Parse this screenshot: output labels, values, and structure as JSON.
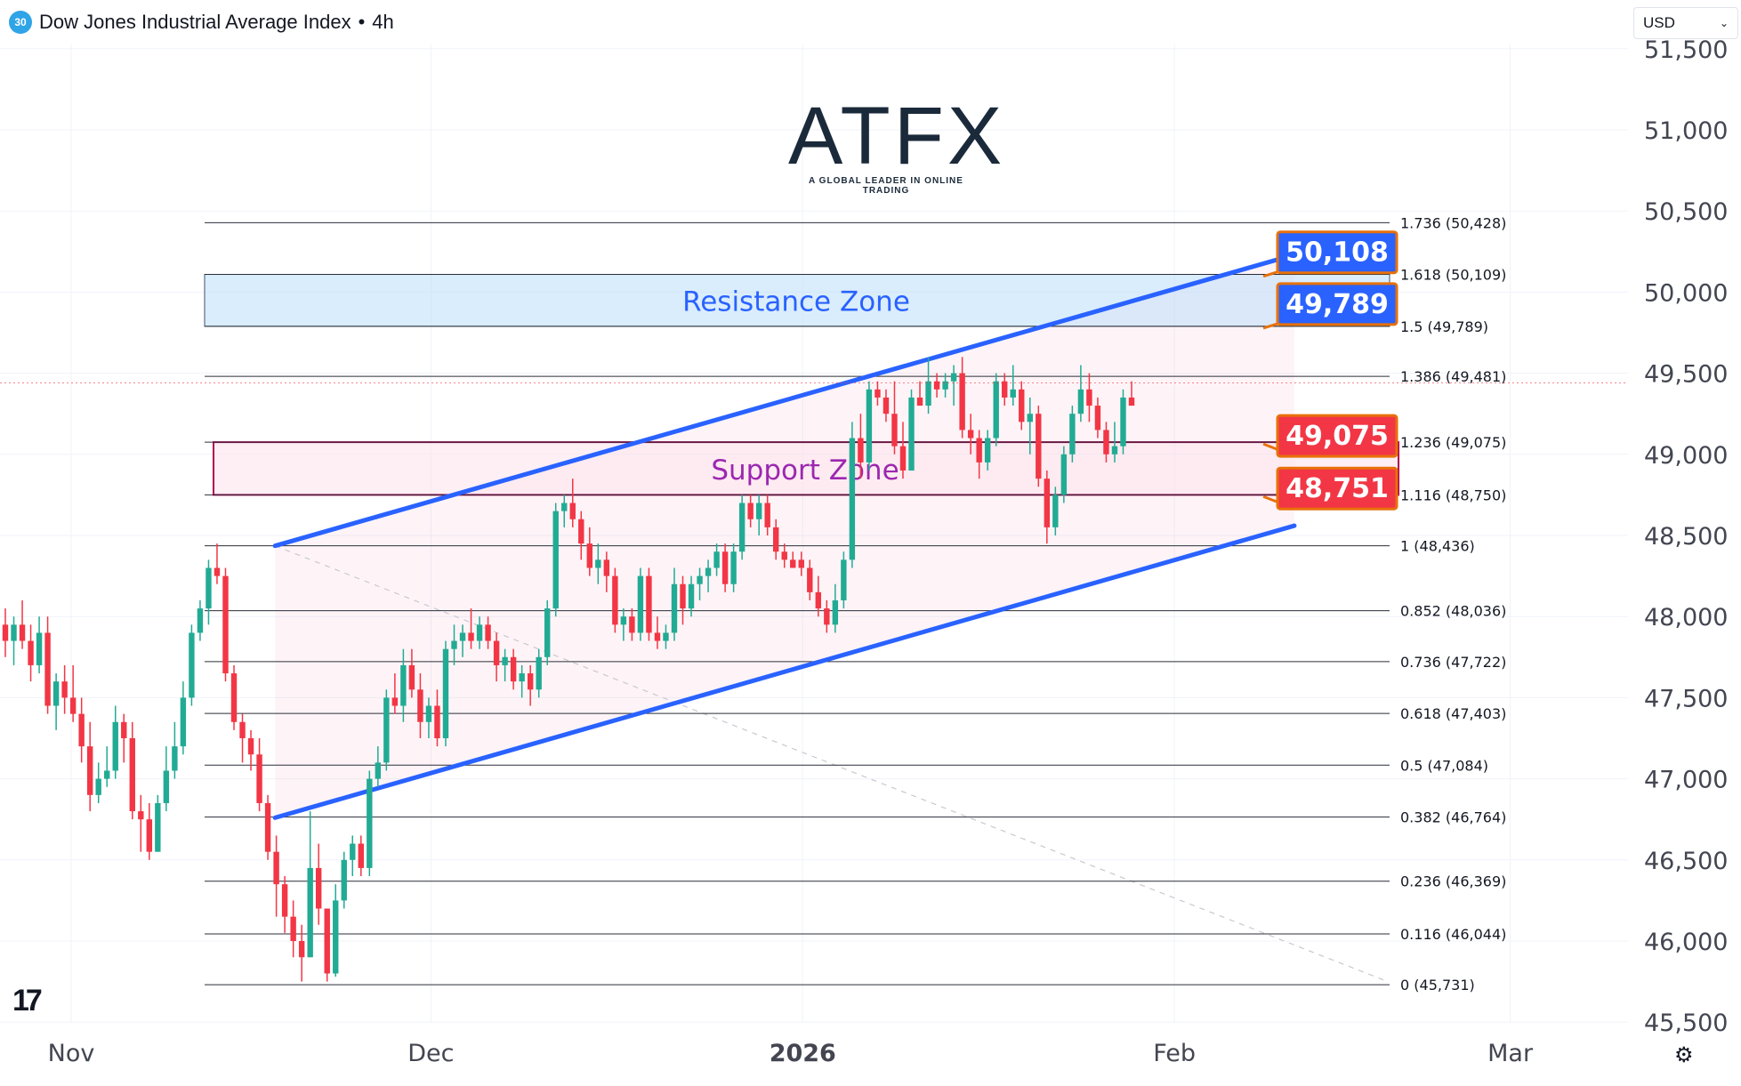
{
  "header": {
    "badge": "30",
    "title": "Dow Jones Industrial Average Index",
    "separator": "•",
    "interval": "4h"
  },
  "currency": {
    "value": "USD"
  },
  "logo": {
    "wordmark": "ATFX",
    "tagline": "A GLOBAL LEADER IN ONLINE TRADING"
  },
  "tv_logo": "17",
  "colors": {
    "bull": "#22ab94",
    "bear": "#f23645",
    "channel": "#2962ff",
    "resistance": "#2962ff",
    "support": "#b0004f",
    "zone_label_res": "#2962ff",
    "zone_label_sup": "#9c27b0"
  },
  "chart_data": {
    "type": "candlestick",
    "y_range": [
      45500,
      51500
    ],
    "y_ticks": [
      {
        "value": 51500,
        "label": "51,500"
      },
      {
        "value": 51000,
        "label": "51,000"
      },
      {
        "value": 50500,
        "label": "50,500"
      },
      {
        "value": 50000,
        "label": "50,000"
      },
      {
        "value": 49500,
        "label": "49,500"
      },
      {
        "value": 49000,
        "label": "49,000"
      },
      {
        "value": 48500,
        "label": "48,500"
      },
      {
        "value": 48000,
        "label": "48,000"
      },
      {
        "value": 47500,
        "label": "47,500"
      },
      {
        "value": 47000,
        "label": "47,000"
      },
      {
        "value": 46500,
        "label": "46,500"
      },
      {
        "value": 46000,
        "label": "46,000"
      },
      {
        "value": 45500,
        "label": "45,500"
      }
    ],
    "x_ticks": [
      {
        "day": 0,
        "label": "Nov",
        "bold": false
      },
      {
        "day": 30,
        "label": "Dec",
        "bold": false
      },
      {
        "day": 61,
        "label": "2026",
        "bold": true
      },
      {
        "day": 92,
        "label": "Feb",
        "bold": false
      },
      {
        "day": 120,
        "label": "Mar",
        "bold": false
      }
    ],
    "fib_levels": [
      {
        "ratio": "1.736",
        "value": 50428,
        "label": "1.736 (50,428)"
      },
      {
        "ratio": "1.618",
        "value": 50109,
        "label": "1.618 (50,109)"
      },
      {
        "ratio": "1.5",
        "value": 49789,
        "label": "1.5 (49,789)"
      },
      {
        "ratio": "1.386",
        "value": 49481,
        "label": "1.386 (49,481)"
      },
      {
        "ratio": "1.236",
        "value": 49075,
        "label": "1.236 (49,075)"
      },
      {
        "ratio": "1.116",
        "value": 48750,
        "label": "1.116 (48,750)"
      },
      {
        "ratio": "1",
        "value": 48436,
        "label": "1 (48,436)"
      },
      {
        "ratio": "0.852",
        "value": 48036,
        "label": "0.852 (48,036)"
      },
      {
        "ratio": "0.736",
        "value": 47722,
        "label": "0.736 (47,722)"
      },
      {
        "ratio": "0.618",
        "value": 47403,
        "label": "0.618 (47,403)"
      },
      {
        "ratio": "0.5",
        "value": 47084,
        "label": "0.5 (47,084)"
      },
      {
        "ratio": "0.382",
        "value": 46764,
        "label": "0.382 (46,764)"
      },
      {
        "ratio": "0.236",
        "value": 46369,
        "label": "0.236 (46,369)"
      },
      {
        "ratio": "0.116",
        "value": 46044,
        "label": "0.116 (46,044)"
      },
      {
        "ratio": "0",
        "value": 45731,
        "label": "0 (45,731)"
      }
    ],
    "zones": [
      {
        "name": "Resistance Zone",
        "from": 49789,
        "to": 50109,
        "style": "resistance"
      },
      {
        "name": "Support Zone",
        "from": 48750,
        "to": 49075,
        "style": "support"
      }
    ],
    "channel": {
      "upper": {
        "from": [
          17,
          48436
        ],
        "to": [
          102,
          50230
        ]
      },
      "lower": {
        "from": [
          17,
          46760
        ],
        "to": [
          102,
          48560
        ]
      }
    },
    "price_tags": [
      {
        "label": "50,108",
        "value": 50108,
        "style": "blue"
      },
      {
        "label": "49,789",
        "value": 49789,
        "style": "blue"
      },
      {
        "label": "49,075",
        "value": 49075,
        "style": "red"
      },
      {
        "label": "48,751",
        "value": 48751,
        "style": "red"
      }
    ],
    "last_price": 49440,
    "candles": [
      {
        "o": 47950,
        "h": 48050,
        "l": 47750,
        "c": 47850
      },
      {
        "o": 47850,
        "h": 48000,
        "l": 47700,
        "c": 47950
      },
      {
        "o": 47950,
        "h": 48100,
        "l": 47800,
        "c": 47850
      },
      {
        "o": 47850,
        "h": 47950,
        "l": 47600,
        "c": 47700
      },
      {
        "o": 47700,
        "h": 48000,
        "l": 47650,
        "c": 47900
      },
      {
        "o": 47900,
        "h": 48000,
        "l": 47400,
        "c": 47450
      },
      {
        "o": 47450,
        "h": 47650,
        "l": 47300,
        "c": 47600
      },
      {
        "o": 47600,
        "h": 47700,
        "l": 47400,
        "c": 47500
      },
      {
        "o": 47500,
        "h": 47700,
        "l": 47350,
        "c": 47400
      },
      {
        "o": 47400,
        "h": 47500,
        "l": 47100,
        "c": 47200
      },
      {
        "o": 47200,
        "h": 47350,
        "l": 46800,
        "c": 46900
      },
      {
        "o": 46900,
        "h": 47100,
        "l": 46850,
        "c": 47000
      },
      {
        "o": 47000,
        "h": 47200,
        "l": 46950,
        "c": 47050
      },
      {
        "o": 47050,
        "h": 47450,
        "l": 47000,
        "c": 47350
      },
      {
        "o": 47350,
        "h": 47400,
        "l": 47100,
        "c": 47250
      },
      {
        "o": 47250,
        "h": 47350,
        "l": 46750,
        "c": 46800
      },
      {
        "o": 46800,
        "h": 46900,
        "l": 46550,
        "c": 46750
      },
      {
        "o": 46750,
        "h": 46850,
        "l": 46500,
        "c": 46550
      },
      {
        "o": 46550,
        "h": 46900,
        "l": 46550,
        "c": 46850
      },
      {
        "o": 46850,
        "h": 47200,
        "l": 46800,
        "c": 47050
      },
      {
        "o": 47050,
        "h": 47350,
        "l": 47000,
        "c": 47200
      },
      {
        "o": 47200,
        "h": 47600,
        "l": 47150,
        "c": 47500
      },
      {
        "o": 47500,
        "h": 47950,
        "l": 47450,
        "c": 47900
      },
      {
        "o": 47900,
        "h": 48100,
        "l": 47850,
        "c": 48050
      },
      {
        "o": 48050,
        "h": 48350,
        "l": 47950,
        "c": 48300
      },
      {
        "o": 48300,
        "h": 48450,
        "l": 48200,
        "c": 48250
      },
      {
        "o": 48250,
        "h": 48300,
        "l": 47600,
        "c": 47650
      },
      {
        "o": 47650,
        "h": 47700,
        "l": 47300,
        "c": 47350
      },
      {
        "o": 47350,
        "h": 47400,
        "l": 47100,
        "c": 47250
      },
      {
        "o": 47250,
        "h": 47300,
        "l": 47050,
        "c": 47150
      },
      {
        "o": 47150,
        "h": 47250,
        "l": 46800,
        "c": 46850
      },
      {
        "o": 46850,
        "h": 46900,
        "l": 46500,
        "c": 46550
      },
      {
        "o": 46550,
        "h": 46650,
        "l": 46150,
        "c": 46350
      },
      {
        "o": 46350,
        "h": 46400,
        "l": 46050,
        "c": 46150
      },
      {
        "o": 46150,
        "h": 46250,
        "l": 45900,
        "c": 46000
      },
      {
        "o": 46000,
        "h": 46100,
        "l": 45750,
        "c": 45900
      },
      {
        "o": 45900,
        "h": 46800,
        "l": 45900,
        "c": 46450
      },
      {
        "o": 46450,
        "h": 46600,
        "l": 46100,
        "c": 46200
      },
      {
        "o": 46200,
        "h": 46150,
        "l": 45750,
        "c": 45800
      },
      {
        "o": 45800,
        "h": 46350,
        "l": 45780,
        "c": 46250
      },
      {
        "o": 46250,
        "h": 46550,
        "l": 46200,
        "c": 46500
      },
      {
        "o": 46500,
        "h": 46650,
        "l": 46400,
        "c": 46600
      },
      {
        "o": 46600,
        "h": 46650,
        "l": 46400,
        "c": 46450
      },
      {
        "o": 46450,
        "h": 47050,
        "l": 46400,
        "c": 47000
      },
      {
        "o": 47000,
        "h": 47200,
        "l": 46950,
        "c": 47100
      },
      {
        "o": 47100,
        "h": 47550,
        "l": 47050,
        "c": 47500
      },
      {
        "o": 47500,
        "h": 47650,
        "l": 47400,
        "c": 47450
      },
      {
        "o": 47450,
        "h": 47800,
        "l": 47350,
        "c": 47700
      },
      {
        "o": 47700,
        "h": 47800,
        "l": 47500,
        "c": 47550
      },
      {
        "o": 47550,
        "h": 47650,
        "l": 47250,
        "c": 47350
      },
      {
        "o": 47350,
        "h": 47500,
        "l": 47250,
        "c": 47450
      },
      {
        "o": 47450,
        "h": 47550,
        "l": 47200,
        "c": 47250
      },
      {
        "o": 47250,
        "h": 47850,
        "l": 47200,
        "c": 47800
      },
      {
        "o": 47800,
        "h": 47950,
        "l": 47700,
        "c": 47850
      },
      {
        "o": 47850,
        "h": 47950,
        "l": 47750,
        "c": 47900
      },
      {
        "o": 47900,
        "h": 48050,
        "l": 47800,
        "c": 47850
      },
      {
        "o": 47850,
        "h": 48000,
        "l": 47800,
        "c": 47950
      },
      {
        "o": 47950,
        "h": 48000,
        "l": 47800,
        "c": 47850
      },
      {
        "o": 47850,
        "h": 47900,
        "l": 47600,
        "c": 47700
      },
      {
        "o": 47700,
        "h": 47800,
        "l": 47600,
        "c": 47750
      },
      {
        "o": 47750,
        "h": 47800,
        "l": 47550,
        "c": 47600
      },
      {
        "o": 47600,
        "h": 47700,
        "l": 47500,
        "c": 47650
      },
      {
        "o": 47650,
        "h": 47700,
        "l": 47450,
        "c": 47550
      },
      {
        "o": 47550,
        "h": 47800,
        "l": 47500,
        "c": 47750
      },
      {
        "o": 47750,
        "h": 48100,
        "l": 47700,
        "c": 48050
      },
      {
        "o": 48050,
        "h": 48700,
        "l": 48000,
        "c": 48650
      },
      {
        "o": 48650,
        "h": 48750,
        "l": 48550,
        "c": 48700
      },
      {
        "o": 48700,
        "h": 48850,
        "l": 48550,
        "c": 48600
      },
      {
        "o": 48600,
        "h": 48650,
        "l": 48350,
        "c": 48450
      },
      {
        "o": 48450,
        "h": 48550,
        "l": 48250,
        "c": 48300
      },
      {
        "o": 48300,
        "h": 48450,
        "l": 48200,
        "c": 48350
      },
      {
        "o": 48350,
        "h": 48400,
        "l": 48150,
        "c": 48250
      },
      {
        "o": 48250,
        "h": 48300,
        "l": 47900,
        "c": 47950
      },
      {
        "o": 47950,
        "h": 48050,
        "l": 47850,
        "c": 48000
      },
      {
        "o": 48000,
        "h": 48050,
        "l": 47850,
        "c": 47900
      },
      {
        "o": 47900,
        "h": 48300,
        "l": 47850,
        "c": 48250
      },
      {
        "o": 48250,
        "h": 48300,
        "l": 47850,
        "c": 47900
      },
      {
        "o": 47900,
        "h": 48000,
        "l": 47800,
        "c": 47850
      },
      {
        "o": 47850,
        "h": 47950,
        "l": 47800,
        "c": 47900
      },
      {
        "o": 47900,
        "h": 48300,
        "l": 47850,
        "c": 48200
      },
      {
        "o": 48200,
        "h": 48250,
        "l": 47950,
        "c": 48050
      },
      {
        "o": 48050,
        "h": 48250,
        "l": 48000,
        "c": 48200
      },
      {
        "o": 48200,
        "h": 48300,
        "l": 48100,
        "c": 48250
      },
      {
        "o": 48250,
        "h": 48350,
        "l": 48150,
        "c": 48300
      },
      {
        "o": 48300,
        "h": 48450,
        "l": 48250,
        "c": 48400
      },
      {
        "o": 48400,
        "h": 48450,
        "l": 48150,
        "c": 48200
      },
      {
        "o": 48200,
        "h": 48450,
        "l": 48150,
        "c": 48400
      },
      {
        "o": 48400,
        "h": 48750,
        "l": 48350,
        "c": 48700
      },
      {
        "o": 48700,
        "h": 48750,
        "l": 48550,
        "c": 48600
      },
      {
        "o": 48600,
        "h": 48750,
        "l": 48500,
        "c": 48700
      },
      {
        "o": 48700,
        "h": 48750,
        "l": 48500,
        "c": 48550
      },
      {
        "o": 48550,
        "h": 48600,
        "l": 48350,
        "c": 48400
      },
      {
        "o": 48400,
        "h": 48450,
        "l": 48300,
        "c": 48350
      },
      {
        "o": 48350,
        "h": 48400,
        "l": 48300,
        "c": 48300
      },
      {
        "o": 48350,
        "h": 48400,
        "l": 48250,
        "c": 48300
      },
      {
        "o": 48300,
        "h": 48350,
        "l": 48100,
        "c": 48150
      },
      {
        "o": 48150,
        "h": 48250,
        "l": 48000,
        "c": 48050
      },
      {
        "o": 48050,
        "h": 48100,
        "l": 47900,
        "c": 47950
      },
      {
        "o": 47950,
        "h": 48200,
        "l": 47900,
        "c": 48100
      },
      {
        "o": 48100,
        "h": 48400,
        "l": 48050,
        "c": 48350
      },
      {
        "o": 48350,
        "h": 49200,
        "l": 48300,
        "c": 49100
      },
      {
        "o": 49100,
        "h": 49250,
        "l": 48850,
        "c": 48950
      },
      {
        "o": 48950,
        "h": 49450,
        "l": 48900,
        "c": 49400
      },
      {
        "o": 49400,
        "h": 49450,
        "l": 49300,
        "c": 49350
      },
      {
        "o": 49350,
        "h": 49400,
        "l": 49200,
        "c": 49250
      },
      {
        "o": 49250,
        "h": 49450,
        "l": 49000,
        "c": 49050
      },
      {
        "o": 49050,
        "h": 49200,
        "l": 48850,
        "c": 48900
      },
      {
        "o": 48900,
        "h": 49400,
        "l": 48900,
        "c": 49350
      },
      {
        "o": 49350,
        "h": 49450,
        "l": 49300,
        "c": 49300
      },
      {
        "o": 49300,
        "h": 49600,
        "l": 49250,
        "c": 49450
      },
      {
        "o": 49450,
        "h": 49500,
        "l": 49350,
        "c": 49400
      },
      {
        "o": 49400,
        "h": 49500,
        "l": 49350,
        "c": 49450
      },
      {
        "o": 49450,
        "h": 49550,
        "l": 49300,
        "c": 49500
      },
      {
        "o": 49500,
        "h": 49600,
        "l": 49100,
        "c": 49150
      },
      {
        "o": 49150,
        "h": 49250,
        "l": 49000,
        "c": 49100
      },
      {
        "o": 49100,
        "h": 49150,
        "l": 48850,
        "c": 48950
      },
      {
        "o": 48950,
        "h": 49150,
        "l": 48900,
        "c": 49100
      },
      {
        "o": 49100,
        "h": 49500,
        "l": 49050,
        "c": 49450
      },
      {
        "o": 49450,
        "h": 49500,
        "l": 49300,
        "c": 49350
      },
      {
        "o": 49350,
        "h": 49550,
        "l": 49300,
        "c": 49400
      },
      {
        "o": 49400,
        "h": 49450,
        "l": 49150,
        "c": 49200
      },
      {
        "o": 49200,
        "h": 49350,
        "l": 49000,
        "c": 49250
      },
      {
        "o": 49250,
        "h": 49300,
        "l": 48800,
        "c": 48850
      },
      {
        "o": 48850,
        "h": 48900,
        "l": 48450,
        "c": 48550
      },
      {
        "o": 48550,
        "h": 48800,
        "l": 48500,
        "c": 48750
      },
      {
        "o": 48750,
        "h": 49050,
        "l": 48700,
        "c": 49000
      },
      {
        "o": 49000,
        "h": 49300,
        "l": 48950,
        "c": 49250
      },
      {
        "o": 49250,
        "h": 49550,
        "l": 49200,
        "c": 49400
      },
      {
        "o": 49400,
        "h": 49500,
        "l": 49200,
        "c": 49300
      },
      {
        "o": 49300,
        "h": 49350,
        "l": 49100,
        "c": 49150
      },
      {
        "o": 49150,
        "h": 49200,
        "l": 48950,
        "c": 49000
      },
      {
        "o": 49000,
        "h": 49200,
        "l": 48950,
        "c": 49050
      },
      {
        "o": 49050,
        "h": 49400,
        "l": 49000,
        "c": 49350
      },
      {
        "o": 49350,
        "h": 49450,
        "l": 49300,
        "c": 49300
      }
    ]
  }
}
